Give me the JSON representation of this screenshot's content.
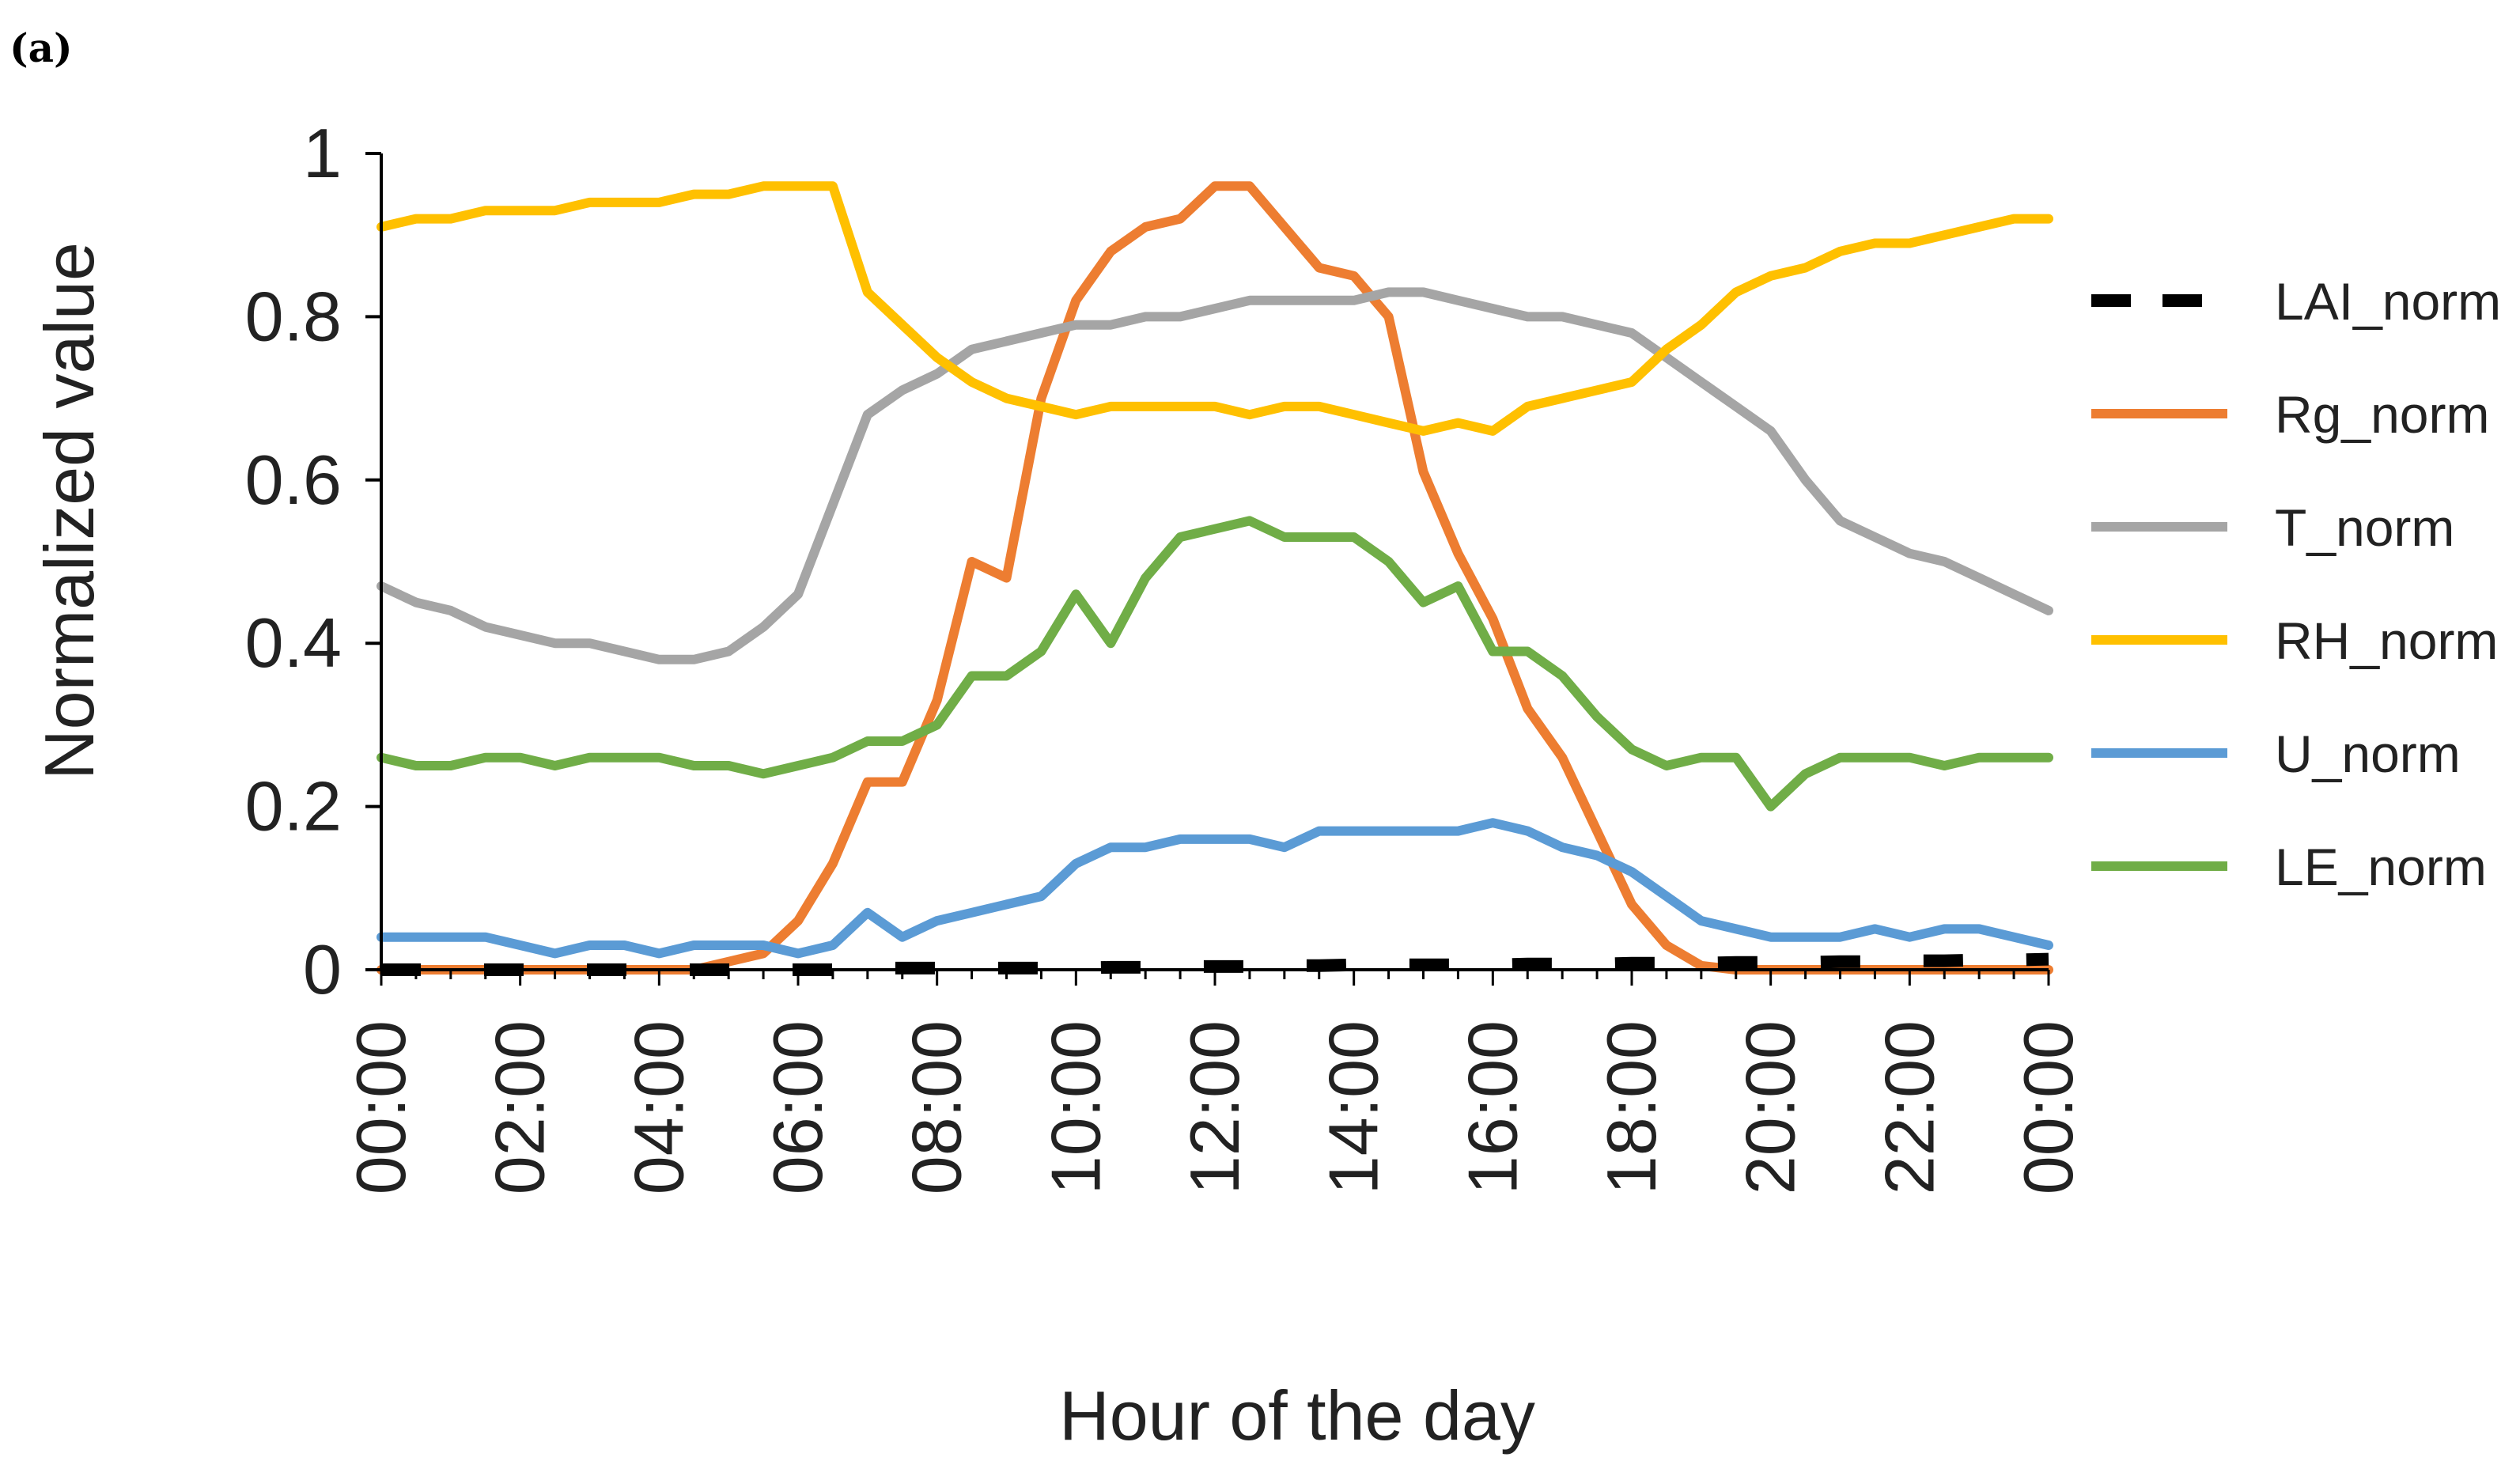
{
  "panel_label": "(a)",
  "chart_data": {
    "type": "line",
    "xlabel": "Hour of the day",
    "ylabel": "Normalized value",
    "ylim": [
      0,
      1
    ],
    "xlim": [
      0,
      24
    ],
    "yticks": [
      0,
      0.2,
      0.4,
      0.6,
      0.8,
      1
    ],
    "ytick_labels": [
      "0",
      "0.2",
      "0.4",
      "0.6",
      "0.8",
      "1"
    ],
    "xtick_labels": [
      "00:00",
      "02:00",
      "04:00",
      "06:00",
      "08:00",
      "10:00",
      "12:00",
      "14:00",
      "16:00",
      "18:00",
      "20:00",
      "22:00",
      "00:00"
    ],
    "grid": false,
    "legend_position": "right",
    "x": [
      0,
      0.5,
      1,
      1.5,
      2,
      2.5,
      3,
      3.5,
      4,
      4.5,
      5,
      5.5,
      6,
      6.5,
      7,
      7.5,
      8,
      8.5,
      9,
      9.5,
      10,
      10.5,
      11,
      11.5,
      12,
      12.5,
      13,
      13.5,
      14,
      14.5,
      15,
      15.5,
      16,
      16.5,
      17,
      17.5,
      18,
      18.5,
      19,
      19.5,
      20,
      20.5,
      21,
      21.5,
      22,
      22.5,
      23,
      23.5,
      24
    ],
    "series": [
      {
        "name": "LAI_norm",
        "color": "#000000",
        "dashed": true,
        "values": [
          0,
          0,
          0,
          0,
          0,
          0,
          0,
          0,
          0,
          0,
          0,
          0,
          0,
          0,
          0.002,
          0.002,
          0.002,
          0.002,
          0.002,
          0.002,
          0.002,
          0.003,
          0.003,
          0.004,
          0.004,
          0.004,
          0.005,
          0.005,
          0.006,
          0.006,
          0.006,
          0.006,
          0.006,
          0.007,
          0.007,
          0.007,
          0.008,
          0.008,
          0.008,
          0.009,
          0.009,
          0.009,
          0.01,
          0.01,
          0.011,
          0.011,
          0.012,
          0.012,
          0.013
        ]
      },
      {
        "name": "Rg_norm",
        "color": "#ED7D31",
        "values": [
          0,
          0,
          0,
          0,
          0,
          0,
          0,
          0,
          0,
          0,
          0.01,
          0.02,
          0.06,
          0.13,
          0.23,
          0.23,
          0.33,
          0.5,
          0.48,
          0.7,
          0.82,
          0.88,
          0.91,
          0.92,
          0.96,
          0.96,
          0.91,
          0.86,
          0.85,
          0.8,
          0.61,
          0.51,
          0.43,
          0.32,
          0.26,
          0.17,
          0.08,
          0.03,
          0.005,
          0,
          0,
          0,
          0,
          0,
          0,
          0,
          0,
          0,
          0
        ]
      },
      {
        "name": "T_norm",
        "color": "#A5A5A5",
        "values": [
          0.47,
          0.45,
          0.44,
          0.42,
          0.41,
          0.4,
          0.4,
          0.39,
          0.38,
          0.38,
          0.39,
          0.42,
          0.46,
          0.57,
          0.68,
          0.71,
          0.73,
          0.76,
          0.77,
          0.78,
          0.79,
          0.79,
          0.8,
          0.8,
          0.81,
          0.82,
          0.82,
          0.82,
          0.82,
          0.83,
          0.83,
          0.82,
          0.81,
          0.8,
          0.8,
          0.79,
          0.78,
          0.75,
          0.72,
          0.69,
          0.66,
          0.6,
          0.55,
          0.53,
          0.51,
          0.5,
          0.48,
          0.46,
          0.44
        ]
      },
      {
        "name": "RH_norm",
        "color": "#FFC000",
        "values": [
          0.91,
          0.92,
          0.92,
          0.93,
          0.93,
          0.93,
          0.94,
          0.94,
          0.94,
          0.95,
          0.95,
          0.96,
          0.96,
          0.96,
          0.83,
          0.79,
          0.75,
          0.72,
          0.7,
          0.69,
          0.68,
          0.69,
          0.69,
          0.69,
          0.69,
          0.68,
          0.69,
          0.69,
          0.68,
          0.67,
          0.66,
          0.67,
          0.66,
          0.69,
          0.7,
          0.71,
          0.72,
          0.76,
          0.79,
          0.83,
          0.85,
          0.86,
          0.88,
          0.89,
          0.89,
          0.9,
          0.91,
          0.92,
          0.92
        ]
      },
      {
        "name": "U_norm",
        "color": "#5B9BD5",
        "values": [
          0.04,
          0.04,
          0.04,
          0.04,
          0.03,
          0.02,
          0.03,
          0.03,
          0.02,
          0.03,
          0.03,
          0.03,
          0.02,
          0.03,
          0.07,
          0.04,
          0.06,
          0.07,
          0.08,
          0.09,
          0.13,
          0.15,
          0.15,
          0.16,
          0.16,
          0.16,
          0.15,
          0.17,
          0.17,
          0.17,
          0.17,
          0.17,
          0.18,
          0.17,
          0.15,
          0.14,
          0.12,
          0.09,
          0.06,
          0.05,
          0.04,
          0.04,
          0.04,
          0.05,
          0.04,
          0.05,
          0.05,
          0.04,
          0.03
        ]
      },
      {
        "name": "LE_norm",
        "color": "#70AD47",
        "values": [
          0.26,
          0.25,
          0.25,
          0.26,
          0.26,
          0.25,
          0.26,
          0.26,
          0.26,
          0.25,
          0.25,
          0.24,
          0.25,
          0.26,
          0.28,
          0.28,
          0.3,
          0.36,
          0.36,
          0.39,
          0.46,
          0.4,
          0.48,
          0.53,
          0.54,
          0.55,
          0.53,
          0.53,
          0.53,
          0.5,
          0.45,
          0.47,
          0.39,
          0.39,
          0.36,
          0.31,
          0.27,
          0.25,
          0.26,
          0.26,
          0.2,
          0.24,
          0.26,
          0.26,
          0.26,
          0.25,
          0.26,
          0.26,
          0.26
        ]
      }
    ]
  }
}
